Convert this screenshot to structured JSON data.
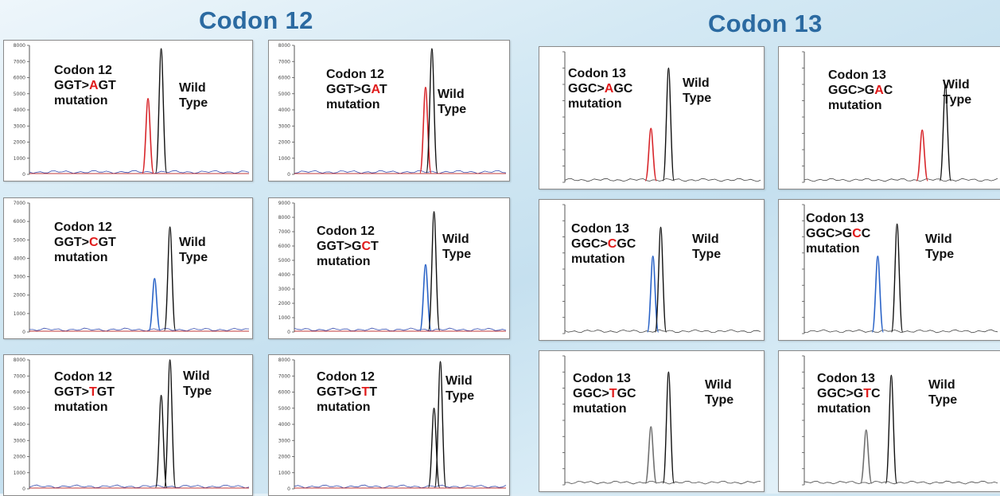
{
  "headings": {
    "codon12": "Codon 12",
    "codon13": "Codon 13"
  },
  "colors": {
    "heading": "#2b6aa1",
    "mutation_highlight": "#e01b1b",
    "peak_black": "#111111",
    "peak_red": "#d8262b",
    "peak_blue": "#2a63c7",
    "peak_gray": "#707070",
    "baseline_red": "#c23a3a",
    "baseline_blue": "#3a4fb0"
  },
  "panels": [
    {
      "id": "c12-a",
      "codon": "Codon 12",
      "pre": "GGT>",
      "mid": "A",
      "post": "GT",
      "suffix": "mutation",
      "wt1": "Wild",
      "wt2": "Type"
    },
    {
      "id": "c12-ga",
      "codon": "Codon 12",
      "pre": "GGT>G",
      "mid": "A",
      "post": "T",
      "suffix": "mutation",
      "wt1": "Wild",
      "wt2": "Type"
    },
    {
      "id": "c13-a",
      "codon": "Codon 13",
      "pre": "GGC>",
      "mid": "A",
      "post": "GC",
      "suffix": "mutation",
      "wt1": "Wild",
      "wt2": "Type"
    },
    {
      "id": "c13-ga",
      "codon": "Codon 13",
      "pre": "GGC>G",
      "mid": "A",
      "post": "C",
      "suffix": "mutation",
      "wt1": "Wild",
      "wt2": "Type"
    },
    {
      "id": "c12-c",
      "codon": "Codon 12",
      "pre": "GGT>",
      "mid": "C",
      "post": "GT",
      "suffix": "mutation",
      "wt1": "Wild",
      "wt2": "Type"
    },
    {
      "id": "c12-gc",
      "codon": "Codon 12",
      "pre": "GGT>G",
      "mid": "C",
      "post": "T",
      "suffix": "mutation",
      "wt1": "Wild",
      "wt2": "Type"
    },
    {
      "id": "c13-c",
      "codon": "Codon 13",
      "pre": "GGC>",
      "mid": "C",
      "post": "GC",
      "suffix": "mutation",
      "wt1": "Wild",
      "wt2": "Type"
    },
    {
      "id": "c13-gc",
      "codon": "Codon 13",
      "pre": "GGC>G",
      "mid": "C",
      "post": "C",
      "suffix": "mutation",
      "wt1": "Wild",
      "wt2": "Type"
    },
    {
      "id": "c12-t",
      "codon": "Codon 12",
      "pre": "GGT>",
      "mid": "T",
      "post": "GT",
      "suffix": "mutation",
      "wt1": "Wild",
      "wt2": "Type"
    },
    {
      "id": "c12-gt",
      "codon": "Codon 12",
      "pre": "GGT>G",
      "mid": "T",
      "post": "T",
      "suffix": "mutation",
      "wt1": "Wild",
      "wt2": "Type"
    },
    {
      "id": "c13-t",
      "codon": "Codon 13",
      "pre": "GGC>",
      "mid": "T",
      "post": "GC",
      "suffix": "mutation",
      "wt1": "Wild",
      "wt2": "Type"
    },
    {
      "id": "c13-gt",
      "codon": "Codon 13",
      "pre": "GGC>G",
      "mid": "T",
      "post": "C",
      "suffix": "mutation",
      "wt1": "Wild",
      "wt2": "Type"
    }
  ],
  "chart_data": [
    {
      "type": "line",
      "panel": "c12-a",
      "ylim": [
        0,
        8000
      ],
      "yticks": [
        0,
        1000,
        2000,
        3000,
        4000,
        5000,
        6000,
        7000,
        8000
      ],
      "series": [
        {
          "color": "red",
          "peak_x": 0.54,
          "peak_y": 4700
        },
        {
          "color": "black",
          "peak_x": 0.6,
          "peak_y": 7800
        }
      ]
    },
    {
      "type": "line",
      "panel": "c12-ga",
      "ylim": [
        0,
        8000
      ],
      "yticks": [
        0,
        1000,
        2000,
        3000,
        4000,
        5000,
        6000,
        7000,
        8000
      ],
      "series": [
        {
          "color": "red",
          "peak_x": 0.62,
          "peak_y": 5400
        },
        {
          "color": "black",
          "peak_x": 0.65,
          "peak_y": 7800
        }
      ]
    },
    {
      "type": "line",
      "panel": "c13-a",
      "ylim": [
        0,
        8000
      ],
      "yticks": [],
      "series": [
        {
          "color": "red",
          "peak_x": 0.44,
          "peak_y": 3300
        },
        {
          "color": "black",
          "peak_x": 0.53,
          "peak_y": 7000
        }
      ]
    },
    {
      "type": "line",
      "panel": "c13-ga",
      "ylim": [
        0,
        2000
      ],
      "yticks": [],
      "series": [
        {
          "color": "red",
          "peak_x": 0.61,
          "peak_y": 800
        },
        {
          "color": "black",
          "peak_x": 0.73,
          "peak_y": 1500
        }
      ]
    },
    {
      "type": "line",
      "panel": "c12-c",
      "ylim": [
        0,
        7000
      ],
      "yticks": [
        0,
        1000,
        2000,
        3000,
        4000,
        5000,
        6000,
        7000
      ],
      "series": [
        {
          "color": "blue",
          "peak_x": 0.57,
          "peak_y": 2900
        },
        {
          "color": "black",
          "peak_x": 0.64,
          "peak_y": 5700
        }
      ]
    },
    {
      "type": "line",
      "panel": "c12-gc",
      "ylim": [
        0,
        9000
      ],
      "yticks": [
        0,
        1000,
        2000,
        3000,
        4000,
        5000,
        6000,
        7000,
        8000,
        9000
      ],
      "series": [
        {
          "color": "blue",
          "peak_x": 0.62,
          "peak_y": 4700
        },
        {
          "color": "black",
          "peak_x": 0.66,
          "peak_y": 8400
        }
      ]
    },
    {
      "type": "line",
      "panel": "c13-c",
      "ylim": [
        0,
        2000
      ],
      "yticks": [],
      "series": [
        {
          "color": "blue",
          "peak_x": 0.45,
          "peak_y": 1200
        },
        {
          "color": "black",
          "peak_x": 0.49,
          "peak_y": 1650
        }
      ]
    },
    {
      "type": "line",
      "panel": "c13-gc",
      "ylim": [
        0,
        2000
      ],
      "yticks": [],
      "series": [
        {
          "color": "blue",
          "peak_x": 0.38,
          "peak_y": 1200
        },
        {
          "color": "black",
          "peak_x": 0.48,
          "peak_y": 1700
        }
      ]
    },
    {
      "type": "line",
      "panel": "c12-t",
      "ylim": [
        0,
        8000
      ],
      "yticks": [
        0,
        1000,
        2000,
        3000,
        4000,
        5000,
        6000,
        7000,
        8000
      ],
      "series": [
        {
          "color": "black",
          "peak_x": 0.6,
          "peak_y": 5800
        },
        {
          "color": "black",
          "peak_x": 0.64,
          "peak_y": 8000
        }
      ]
    },
    {
      "type": "line",
      "panel": "c12-gt",
      "ylim": [
        0,
        8000
      ],
      "yticks": [
        0,
        1000,
        2000,
        3000,
        4000,
        5000,
        6000,
        7000,
        8000
      ],
      "series": [
        {
          "color": "black",
          "peak_x": 0.66,
          "peak_y": 5000
        },
        {
          "color": "black",
          "peak_x": 0.69,
          "peak_y": 7900
        }
      ]
    },
    {
      "type": "line",
      "panel": "c13-t",
      "ylim": [
        0,
        2000
      ],
      "yticks": [],
      "series": [
        {
          "color": "gray",
          "peak_x": 0.44,
          "peak_y": 900
        },
        {
          "color": "black",
          "peak_x": 0.53,
          "peak_y": 1750
        }
      ]
    },
    {
      "type": "line",
      "panel": "c13-gt",
      "ylim": [
        0,
        2000
      ],
      "yticks": [],
      "series": [
        {
          "color": "gray",
          "peak_x": 0.32,
          "peak_y": 850
        },
        {
          "color": "black",
          "peak_x": 0.45,
          "peak_y": 1700
        }
      ]
    }
  ]
}
